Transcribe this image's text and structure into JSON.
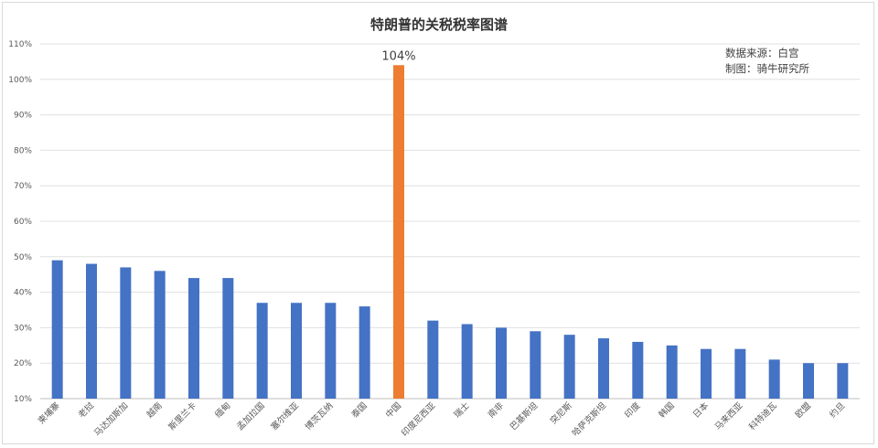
{
  "chart_data": {
    "type": "bar",
    "title": "特朗普的关税税率图谱",
    "annotations": [
      "数据来源：白宫",
      "制图：骑牛研究所"
    ],
    "categories": [
      "柬埔寨",
      "老挝",
      "马达加斯加",
      "越南",
      "斯里兰卡",
      "缅甸",
      "孟加拉国",
      "塞尔维亚",
      "博茨瓦纳",
      "泰国",
      "中国",
      "印度尼西亚",
      "瑞士",
      "南非",
      "巴基斯坦",
      "突尼斯",
      "哈萨克斯坦",
      "印度",
      "韩国",
      "日本",
      "马来西亚",
      "科特迪瓦",
      "欧盟",
      "约旦"
    ],
    "values": [
      49,
      48,
      47,
      46,
      44,
      44,
      37,
      37,
      37,
      36,
      104,
      32,
      31,
      30,
      29,
      28,
      27,
      26,
      25,
      24,
      24,
      21,
      20,
      20
    ],
    "ylim": [
      10,
      110
    ],
    "yticks": [
      "10%",
      "20%",
      "30%",
      "40%",
      "50%",
      "60%",
      "70%",
      "80%",
      "90%",
      "100%",
      "110%"
    ],
    "highlight_label": "104%",
    "colors": {
      "default": "#4472c4",
      "highlight": "#ed7d31",
      "grid": "#e0e0e0"
    },
    "grid": true
  }
}
